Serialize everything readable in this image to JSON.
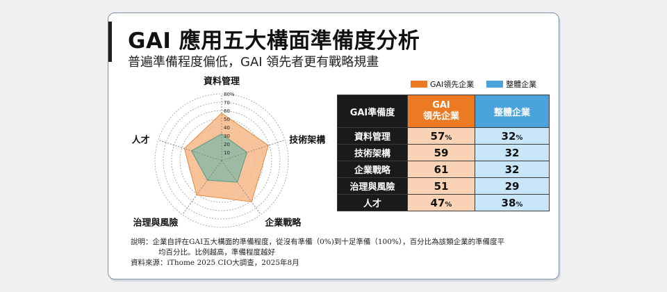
{
  "title": "GAI 應用五大構面準備度分析",
  "subtitle": "普遍準備程度偏低，GAI 領先者更有戰略規畫",
  "legend": [
    {
      "name": "GAI領先企業",
      "color": "#ec7a22"
    },
    {
      "name": "整體企業",
      "color": "#4ba3dc"
    }
  ],
  "table": {
    "headers": [
      "GAI準備度",
      "GAI\n領先企業",
      "整體企業"
    ],
    "rows": [
      {
        "label": "資料管理",
        "gai": "57",
        "gai_unit": "%",
        "all": "32",
        "all_unit": "%"
      },
      {
        "label": "技術架構",
        "gai": "59",
        "gai_unit": "",
        "all": "32",
        "all_unit": ""
      },
      {
        "label": "企業戰略",
        "gai": "61",
        "gai_unit": "",
        "all": "32",
        "all_unit": ""
      },
      {
        "label": "治理與風險",
        "gai": "51",
        "gai_unit": "",
        "all": "29",
        "all_unit": ""
      },
      {
        "label": "人才",
        "gai": "47",
        "gai_unit": "%",
        "all": "38",
        "all_unit": "%"
      }
    ]
  },
  "chart_data": {
    "type": "radar",
    "axes": [
      "資料管理",
      "技術架構",
      "企業戰略",
      "治理與風險",
      "人才"
    ],
    "scale_ticks": [
      "10",
      "20",
      "30",
      "40",
      "50",
      "60",
      "70",
      "80%"
    ],
    "range": [
      0,
      80
    ],
    "series": [
      {
        "name": "GAI領先企業",
        "values": [
          57,
          59,
          61,
          51,
          47
        ],
        "color": "#ec7a22"
      },
      {
        "name": "整體企業",
        "values": [
          32,
          32,
          32,
          29,
          38
        ],
        "color": "#4ba3dc"
      }
    ]
  },
  "notes": {
    "line1": "說明：企業自評在GAI五大構面的準備程度，從沒有準備（0%)到十足準備（100%），百分比為該類企業的準備度平",
    "line2": "均百分比。比例越高，準備程度越好",
    "line3": "資料來源：iThome 2025 CIO大調查，2025年8月"
  }
}
